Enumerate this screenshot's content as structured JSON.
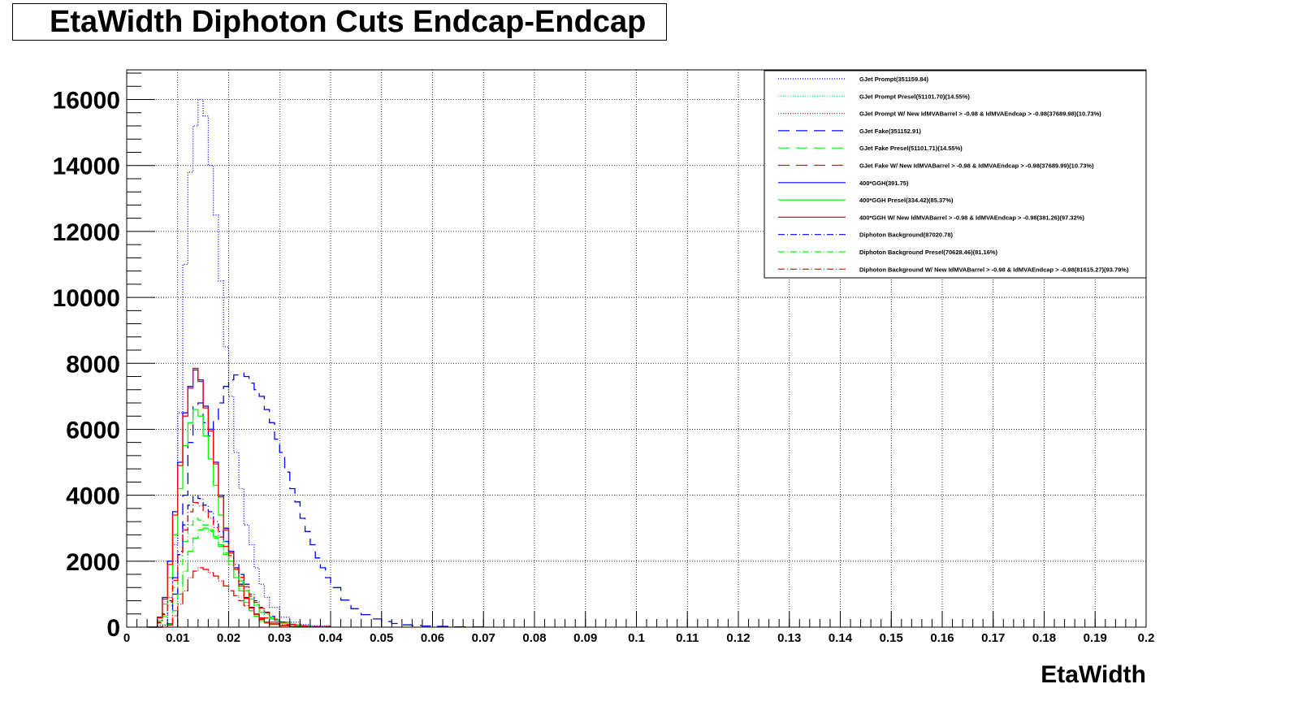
{
  "title": "EtaWidth Diphoton Cuts Endcap-Endcap",
  "chart_data": {
    "type": "line",
    "title": "EtaWidth Diphoton Cuts Endcap-Endcap",
    "xlabel": "EtaWidth",
    "ylabel": "",
    "xlim": [
      0,
      0.2
    ],
    "ylim": [
      0,
      16900
    ],
    "grid": true,
    "legend_position": "top-right",
    "x_ticks": [
      "0",
      "0.01",
      "0.02",
      "0.03",
      "0.04",
      "0.05",
      "0.06",
      "0.07",
      "0.08",
      "0.09",
      "0.1",
      "0.11",
      "0.12",
      "0.13",
      "0.14",
      "0.15",
      "0.16",
      "0.17",
      "0.18",
      "0.19",
      "0.2"
    ],
    "y_ticks": [
      "0",
      "2000",
      "4000",
      "6000",
      "8000",
      "10000",
      "12000",
      "14000",
      "16000"
    ],
    "series": [
      {
        "name": "GJet Prompt(351159.84)",
        "color": "#0000ff",
        "style": "dotted",
        "x": [
          0.004,
          0.006,
          0.008,
          0.009,
          0.01,
          0.011,
          0.012,
          0.013,
          0.014,
          0.015,
          0.016,
          0.017,
          0.018,
          0.019,
          0.02,
          0.021,
          0.022,
          0.023,
          0.024,
          0.025,
          0.026,
          0.027,
          0.028,
          0.03,
          0.032,
          0.034,
          0.036,
          0.04
        ],
        "y": [
          0,
          60,
          900,
          2500,
          6500,
          11000,
          13800,
          15200,
          16000,
          15500,
          14000,
          12500,
          10500,
          8500,
          7000,
          5300,
          4200,
          3100,
          2500,
          1800,
          1300,
          900,
          600,
          300,
          150,
          80,
          40,
          0
        ]
      },
      {
        "name": "GJet Prompt Presel(51101.70)(14.55%)",
        "color": "#00ff00",
        "style": "dotted",
        "x": [
          0.005,
          0.007,
          0.009,
          0.01,
          0.011,
          0.012,
          0.013,
          0.014,
          0.015,
          0.016,
          0.017,
          0.018,
          0.019,
          0.02,
          0.021,
          0.022,
          0.023,
          0.024,
          0.025,
          0.026,
          0.028,
          0.03,
          0.033,
          0.036
        ],
        "y": [
          0,
          80,
          500,
          1000,
          1700,
          2300,
          2700,
          2950,
          3000,
          2900,
          2750,
          2500,
          2250,
          2000,
          1750,
          1400,
          1100,
          850,
          650,
          450,
          250,
          120,
          40,
          0
        ]
      },
      {
        "name": "GJet Prompt W/ New IdMVABarrel > -0.98 & IdMVAEndcap > -0.98(37689.98)(10.73%)",
        "color": "#ff0000",
        "style": "dotted",
        "x": [
          0.005,
          0.007,
          0.009,
          0.01,
          0.011,
          0.012,
          0.013,
          0.014,
          0.015,
          0.016,
          0.017,
          0.018,
          0.019,
          0.02,
          0.021,
          0.022,
          0.023,
          0.024,
          0.025,
          0.026,
          0.028,
          0.03,
          0.033,
          0.036
        ],
        "y": [
          0,
          60,
          350,
          700,
          1100,
          1500,
          1700,
          1800,
          1750,
          1650,
          1550,
          1400,
          1250,
          1100,
          950,
          800,
          650,
          500,
          380,
          280,
          150,
          80,
          30,
          0
        ]
      },
      {
        "name": "GJet Fake(351152.91)",
        "color": "#0000ff",
        "style": "dashed",
        "x": [
          0.005,
          0.007,
          0.009,
          0.01,
          0.011,
          0.012,
          0.013,
          0.014,
          0.015,
          0.016,
          0.017,
          0.018,
          0.019,
          0.02,
          0.021,
          0.022,
          0.023,
          0.024,
          0.025,
          0.026,
          0.027,
          0.028,
          0.029,
          0.03,
          0.031,
          0.032,
          0.033,
          0.034,
          0.035,
          0.036,
          0.037,
          0.038,
          0.039,
          0.04,
          0.042,
          0.044,
          0.046,
          0.048,
          0.05,
          0.052,
          0.054,
          0.056,
          0.058,
          0.06,
          0.064,
          0.068,
          0.07
        ],
        "y": [
          0,
          100,
          1000,
          2200,
          4000,
          5600,
          6700,
          6800,
          6200,
          5800,
          6300,
          6800,
          7300,
          7500,
          7650,
          7700,
          7600,
          7400,
          7200,
          7000,
          6600,
          6200,
          5700,
          5300,
          4700,
          4200,
          3800,
          3300,
          2900,
          2500,
          2100,
          1800,
          1500,
          1200,
          820,
          560,
          380,
          250,
          170,
          110,
          70,
          50,
          35,
          25,
          10,
          5,
          0
        ]
      },
      {
        "name": "GJet Fake Presel(51101.71)(14.55%)",
        "color": "#00ff00",
        "style": "dashed",
        "x": [
          0.005,
          0.007,
          0.009,
          0.01,
          0.011,
          0.012,
          0.013,
          0.014,
          0.015,
          0.016,
          0.017,
          0.018,
          0.019,
          0.02,
          0.021,
          0.022,
          0.023,
          0.024,
          0.025,
          0.026,
          0.028,
          0.03,
          0.033,
          0.036
        ],
        "y": [
          0,
          80,
          500,
          1000,
          1700,
          2300,
          2700,
          2950,
          3000,
          2900,
          2750,
          2500,
          2250,
          2000,
          1750,
          1400,
          1100,
          850,
          650,
          450,
          250,
          120,
          40,
          0
        ]
      },
      {
        "name": "GJet Fake W/ New IdMVABarrel > -0.98 & IdMVAEndcap > -0.98(37689.99)(10.73%)",
        "color": "#ff0000",
        "style": "dashed",
        "x": [
          0.005,
          0.007,
          0.009,
          0.01,
          0.011,
          0.012,
          0.013,
          0.014,
          0.015,
          0.016,
          0.017,
          0.018,
          0.019,
          0.02,
          0.021,
          0.022,
          0.023,
          0.024,
          0.025,
          0.026,
          0.028,
          0.03,
          0.033,
          0.036
        ],
        "y": [
          0,
          60,
          350,
          700,
          1100,
          1500,
          1700,
          1800,
          1750,
          1650,
          1550,
          1400,
          1250,
          1100,
          950,
          800,
          650,
          500,
          380,
          280,
          150,
          80,
          30,
          0
        ]
      },
      {
        "name": "400*GGH(391.75)",
        "color": "#0000ff",
        "style": "solid",
        "x": [
          0.004,
          0.006,
          0.007,
          0.008,
          0.009,
          0.01,
          0.011,
          0.012,
          0.013,
          0.014,
          0.015,
          0.016,
          0.017,
          0.018,
          0.019,
          0.02,
          0.021,
          0.022,
          0.023,
          0.024,
          0.025,
          0.026,
          0.027,
          0.028,
          0.03,
          0.032,
          0.034,
          0.036
        ],
        "y": [
          0,
          300,
          900,
          2000,
          3500,
          5000,
          6500,
          7300,
          7800,
          7500,
          6700,
          6000,
          5000,
          4000,
          3000,
          2300,
          1800,
          1300,
          900,
          600,
          400,
          250,
          150,
          100,
          50,
          20,
          10,
          0
        ]
      },
      {
        "name": "400*GGH Presel(334.42)(85.37%)",
        "color": "#00ff00",
        "style": "solid",
        "x": [
          0.004,
          0.006,
          0.007,
          0.008,
          0.009,
          0.01,
          0.011,
          0.012,
          0.013,
          0.014,
          0.015,
          0.016,
          0.017,
          0.018,
          0.019,
          0.02,
          0.021,
          0.022,
          0.023,
          0.024,
          0.025,
          0.026,
          0.027,
          0.028,
          0.03,
          0.032,
          0.034,
          0.036
        ],
        "y": [
          0,
          200,
          700,
          1500,
          2800,
          4200,
          5500,
          6200,
          6600,
          6400,
          5800,
          5100,
          4300,
          3400,
          2600,
          2000,
          1500,
          1100,
          750,
          500,
          330,
          200,
          120,
          80,
          40,
          15,
          5,
          0
        ]
      },
      {
        "name": "400*GGH W/ New IdMVABarrel > -0.98 & IdMVAEndcap > -0.98(381.26)(97.32%)",
        "color": "#ff0000",
        "style": "solid",
        "x": [
          0.004,
          0.006,
          0.007,
          0.008,
          0.009,
          0.01,
          0.011,
          0.012,
          0.013,
          0.014,
          0.015,
          0.016,
          0.017,
          0.018,
          0.019,
          0.02,
          0.021,
          0.022,
          0.023,
          0.024,
          0.025,
          0.026,
          0.027,
          0.028,
          0.03,
          0.032,
          0.034,
          0.036
        ],
        "y": [
          0,
          280,
          850,
          1900,
          3400,
          4900,
          6400,
          7250,
          7850,
          7450,
          6650,
          5950,
          4950,
          3950,
          2950,
          2250,
          1750,
          1250,
          870,
          580,
          390,
          240,
          145,
          95,
          45,
          18,
          8,
          0
        ]
      },
      {
        "name": "Diphoton Background(87020.78)",
        "color": "#0000ff",
        "style": "dashdot",
        "x": [
          0.004,
          0.006,
          0.007,
          0.008,
          0.009,
          0.01,
          0.011,
          0.012,
          0.013,
          0.014,
          0.015,
          0.016,
          0.017,
          0.018,
          0.019,
          0.02,
          0.021,
          0.022,
          0.023,
          0.024,
          0.025,
          0.026,
          0.027,
          0.028,
          0.029,
          0.03,
          0.032,
          0.034,
          0.036,
          0.04
        ],
        "y": [
          0,
          150,
          400,
          800,
          1500,
          2300,
          3100,
          3700,
          4000,
          3900,
          3700,
          3500,
          3200,
          2900,
          2600,
          2300,
          1900,
          1600,
          1300,
          1000,
          800,
          600,
          450,
          330,
          230,
          160,
          80,
          40,
          20,
          0
        ]
      },
      {
        "name": "Diphoton Background Presel(70628.46)(81.16%)",
        "color": "#00ff00",
        "style": "dashdot",
        "x": [
          0.004,
          0.006,
          0.007,
          0.008,
          0.009,
          0.01,
          0.011,
          0.012,
          0.013,
          0.014,
          0.015,
          0.016,
          0.017,
          0.018,
          0.019,
          0.02,
          0.021,
          0.022,
          0.023,
          0.024,
          0.025,
          0.026,
          0.027,
          0.028,
          0.029,
          0.03,
          0.032,
          0.034,
          0.036,
          0.04
        ],
        "y": [
          0,
          120,
          320,
          650,
          1200,
          1900,
          2600,
          3100,
          3300,
          3250,
          3100,
          2950,
          2700,
          2450,
          2200,
          1900,
          1600,
          1350,
          1100,
          850,
          680,
          510,
          380,
          280,
          200,
          140,
          70,
          35,
          15,
          0
        ]
      },
      {
        "name": "Diphoton Background W/ New IdMVABarrel > -0.98 & IdMVAEndcap > -0.98(81615.27)(93.79%)",
        "color": "#ff0000",
        "style": "dashdot",
        "x": [
          0.004,
          0.006,
          0.007,
          0.008,
          0.009,
          0.01,
          0.011,
          0.012,
          0.013,
          0.014,
          0.015,
          0.016,
          0.017,
          0.018,
          0.019,
          0.02,
          0.021,
          0.022,
          0.023,
          0.024,
          0.025,
          0.026,
          0.027,
          0.028,
          0.029,
          0.03,
          0.032,
          0.034,
          0.036,
          0.04
        ],
        "y": [
          0,
          140,
          380,
          760,
          1420,
          2180,
          2950,
          3500,
          3780,
          3680,
          3500,
          3300,
          3020,
          2730,
          2450,
          2170,
          1790,
          1510,
          1230,
          940,
          750,
          570,
          430,
          310,
          220,
          150,
          75,
          38,
          18,
          0
        ]
      }
    ]
  }
}
